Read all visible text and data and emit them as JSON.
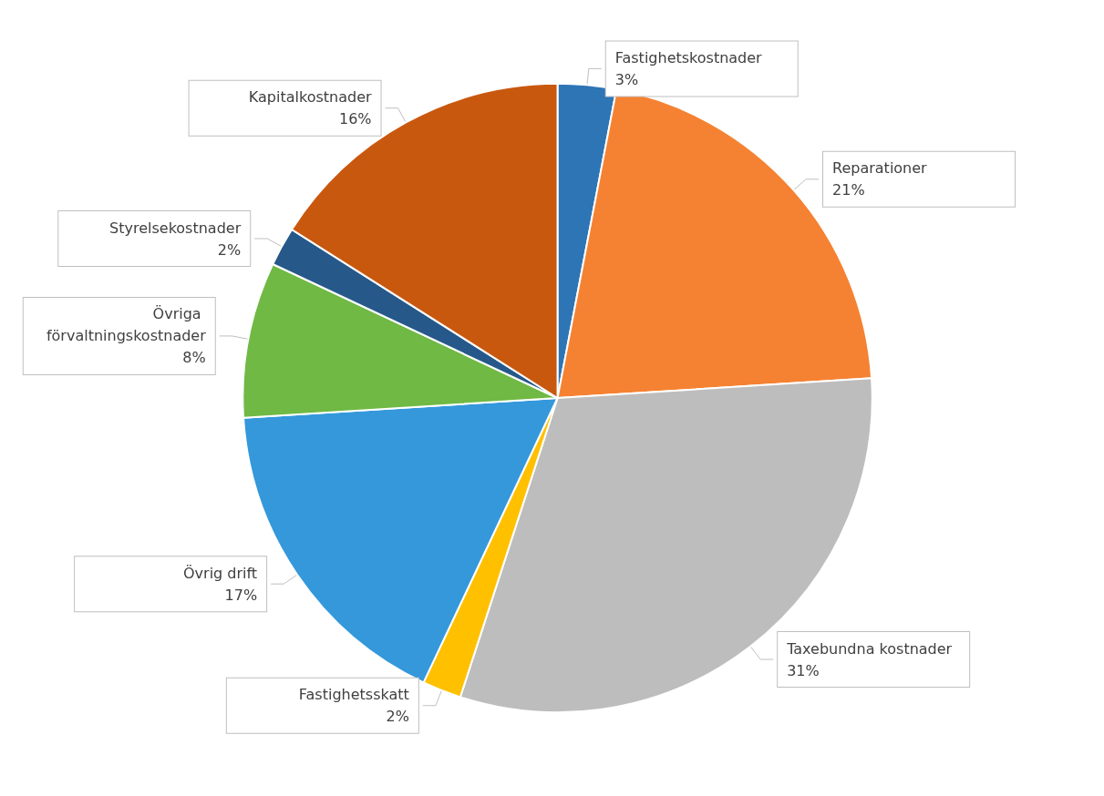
{
  "chart_data": {
    "type": "pie",
    "categories": [
      "Fastighetskostnader",
      "Reparationer",
      "Taxebundna kostnader",
      "Fastighetsskatt",
      "Övrig drift",
      "Övriga förvaltningskostnader",
      "Styrelsekostnader",
      "Kapitalkostnader"
    ],
    "values": [
      3,
      21,
      31,
      2,
      17,
      8,
      2,
      16
    ],
    "value_labels": [
      "3%",
      "21%",
      "31%",
      "2%",
      "17%",
      "8%",
      "2%",
      "16%"
    ],
    "colors": [
      "#2e75b6",
      "#f58232",
      "#bdbdbd",
      "#ffc000",
      "#3498db",
      "#70b944",
      "#26598a",
      "#c9580f"
    ],
    "legend": false
  }
}
